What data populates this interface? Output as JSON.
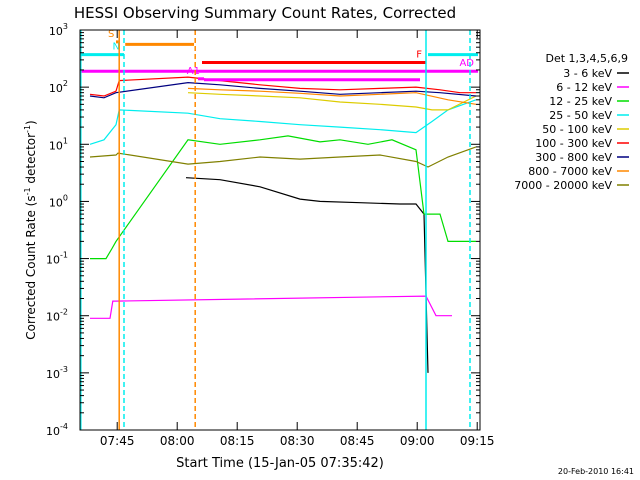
{
  "chart_data": {
    "type": "line",
    "title": "HESSI Observing Summary Count Rates, Corrected",
    "xlabel": "Start Time (15-Jan-05 07:35:42)",
    "ylabel_main": "Corrected Count Rate (s",
    "ylabel_sup1": "-1",
    "ylabel_mid": " detector",
    "ylabel_sup2": "-1",
    "ylabel_end": ")",
    "footer": "20-Feb-2010 16:41",
    "x_unit": "minutes since 07:35:42 UT",
    "xlim": [
      0,
      100
    ],
    "ylim": [
      0.0001,
      1000
    ],
    "yscale": "log",
    "x_ticks": [
      {
        "min": 9.3,
        "label": "07:45"
      },
      {
        "min": 24.3,
        "label": "08:00"
      },
      {
        "min": 39.3,
        "label": "08:15"
      },
      {
        "min": 54.3,
        "label": "08:30"
      },
      {
        "min": 69.3,
        "label": "08:45"
      },
      {
        "min": 84.3,
        "label": "09:00"
      },
      {
        "min": 99.3,
        "label": "09:15"
      }
    ],
    "y_ticks": [
      {
        "value": 1000,
        "base": "10",
        "exp": "3"
      },
      {
        "value": 100,
        "base": "10",
        "exp": "2"
      },
      {
        "value": 10,
        "base": "10",
        "exp": "1"
      },
      {
        "value": 1,
        "base": "10",
        "exp": "0"
      },
      {
        "value": 0.1,
        "base": "10",
        "exp": "-1"
      },
      {
        "value": 0.01,
        "base": "10",
        "exp": "-2"
      },
      {
        "value": 0.001,
        "base": "10",
        "exp": "-3"
      },
      {
        "value": 0.0001,
        "base": "10",
        "exp": "-4"
      }
    ],
    "legend_title": "Det 1,3,4,5,6,9",
    "legend_position": "right, outside plot",
    "series": [
      {
        "name": "3 - 6 keV",
        "color": "#000000",
        "points": [
          [
            26.5,
            2.6
          ],
          [
            35,
            2.4
          ],
          [
            45,
            1.8
          ],
          [
            55,
            1.1
          ],
          [
            60,
            1.0
          ],
          [
            70,
            0.95
          ],
          [
            80,
            0.9
          ],
          [
            84,
            0.9
          ],
          [
            86,
            0.6
          ],
          [
            87,
            0.001
          ]
        ]
      },
      {
        "name": "6 - 12 keV",
        "color": "#ff00ff",
        "points": [
          [
            2.5,
            0.009
          ],
          [
            7.5,
            0.009
          ],
          [
            8.2,
            0.018
          ],
          [
            9,
            0.018
          ],
          [
            86.5,
            0.022
          ],
          [
            89,
            0.01
          ],
          [
            93,
            0.01
          ]
        ]
      },
      {
        "name": "12 - 25 keV",
        "color": "#00dd00",
        "points": [
          [
            2.5,
            0.1
          ],
          [
            6.5,
            0.1
          ],
          [
            8,
            0.15
          ],
          [
            9,
            0.2
          ],
          [
            27,
            12
          ],
          [
            35,
            10
          ],
          [
            45,
            12
          ],
          [
            52,
            14
          ],
          [
            60,
            11
          ],
          [
            65,
            12
          ],
          [
            72,
            10
          ],
          [
            78,
            12
          ],
          [
            84,
            8
          ],
          [
            86,
            0.6
          ],
          [
            90,
            0.6
          ],
          [
            92,
            0.2
          ],
          [
            99,
            0.2
          ]
        ]
      },
      {
        "name": "25 - 50 keV",
        "color": "#00eeee",
        "points": [
          [
            2.5,
            10
          ],
          [
            6,
            12
          ],
          [
            9,
            22
          ],
          [
            9.8,
            40
          ],
          [
            27,
            35
          ],
          [
            35,
            28
          ],
          [
            45,
            25
          ],
          [
            55,
            22
          ],
          [
            65,
            20
          ],
          [
            75,
            18
          ],
          [
            84,
            16
          ],
          [
            88,
            25
          ],
          [
            92,
            40
          ],
          [
            99,
            60
          ]
        ]
      },
      {
        "name": "50 - 100 keV",
        "color": "#ddcc00",
        "points": [
          [
            27,
            80
          ],
          [
            35,
            75
          ],
          [
            45,
            70
          ],
          [
            55,
            65
          ],
          [
            65,
            55
          ],
          [
            75,
            50
          ],
          [
            84,
            45
          ],
          [
            88,
            40
          ],
          [
            92,
            40
          ],
          [
            99,
            70
          ]
        ]
      },
      {
        "name": "100 - 300 keV",
        "color": "#ff0000",
        "points": [
          [
            2.5,
            75
          ],
          [
            6,
            70
          ],
          [
            9,
            85
          ],
          [
            9.8,
            130
          ],
          [
            27,
            150
          ],
          [
            35,
            130
          ],
          [
            45,
            110
          ],
          [
            55,
            95
          ],
          [
            65,
            90
          ],
          [
            75,
            95
          ],
          [
            84,
            100
          ],
          [
            90,
            90
          ],
          [
            95,
            80
          ],
          [
            99,
            80
          ]
        ]
      },
      {
        "name": "300 - 800 keV",
        "color": "#000080",
        "points": [
          [
            2.5,
            70
          ],
          [
            6,
            65
          ],
          [
            9,
            80
          ],
          [
            27,
            120
          ],
          [
            35,
            110
          ],
          [
            45,
            95
          ],
          [
            55,
            85
          ],
          [
            65,
            75
          ],
          [
            75,
            80
          ],
          [
            84,
            85
          ],
          [
            90,
            80
          ],
          [
            99,
            70
          ]
        ]
      },
      {
        "name": "800 - 7000 keV",
        "color": "#ff8800",
        "points": [
          [
            27,
            95
          ],
          [
            35,
            90
          ],
          [
            45,
            85
          ],
          [
            55,
            78
          ],
          [
            65,
            70
          ],
          [
            75,
            75
          ],
          [
            84,
            80
          ],
          [
            92,
            60
          ],
          [
            99,
            50
          ]
        ]
      },
      {
        "name": "7000 - 20000 keV",
        "color": "#808000",
        "points": [
          [
            2.5,
            6
          ],
          [
            9,
            6.5
          ],
          [
            9.5,
            7
          ],
          [
            27,
            4.5
          ],
          [
            35,
            5
          ],
          [
            45,
            6
          ],
          [
            55,
            5.5
          ],
          [
            65,
            6
          ],
          [
            75,
            6.5
          ],
          [
            84,
            5
          ],
          [
            87,
            4
          ],
          [
            92,
            6
          ],
          [
            99,
            9
          ]
        ]
      }
    ],
    "flag_bars": [
      {
        "label": "S",
        "color": "#ff8800",
        "x": [
          9.0,
          9.6
        ],
        "y": 620
      },
      {
        "label": "N",
        "color": "#00eeee",
        "x": [
          0,
          11.0
        ],
        "y": 370
      },
      {
        "label": "",
        "color": "#ff8800",
        "x": [
          11.3,
          28.5
        ],
        "y": 560
      },
      {
        "label": "F",
        "color": "#ff0000",
        "x": [
          30.5,
          86.5
        ],
        "y": 270
      },
      {
        "label": "AD",
        "color": "#ff00ff",
        "x": [
          0,
          99.5
        ],
        "y": 190
      },
      {
        "label": "A1",
        "color": "#ff00ff",
        "x": [
          29.5,
          31
        ],
        "y": 140
      },
      {
        "label": "",
        "color": "#ff00ff",
        "x": [
          31,
          85
        ],
        "y": 135
      },
      {
        "label": "",
        "color": "#00eeee",
        "x": [
          87,
          99.5
        ],
        "y": 370
      }
    ],
    "vertical_lines": [
      {
        "x": 0.2,
        "color": "#00eeee",
        "style": "solid"
      },
      {
        "x": 9.8,
        "color": "#ff8800",
        "style": "solid"
      },
      {
        "x": 11.0,
        "color": "#00eeee",
        "style": "dashed"
      },
      {
        "x": 28.8,
        "color": "#ff8800",
        "style": "dashed"
      },
      {
        "x": 86.5,
        "color": "#00eeee",
        "style": "solid"
      },
      {
        "x": 97.5,
        "color": "#00eeee",
        "style": "dashed"
      }
    ]
  }
}
